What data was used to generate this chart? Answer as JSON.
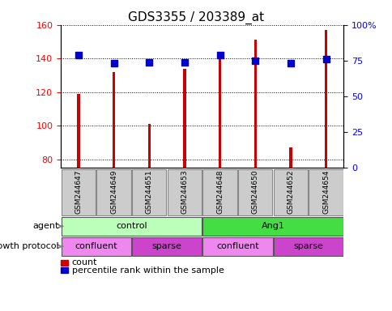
{
  "title": "GDS3355 / 203389_at",
  "samples": [
    "GSM244647",
    "GSM244649",
    "GSM244651",
    "GSM244653",
    "GSM244648",
    "GSM244650",
    "GSM244652",
    "GSM244654"
  ],
  "count_values": [
    119,
    132,
    101,
    134,
    141,
    151,
    87,
    157
  ],
  "percentile_values": [
    79,
    73,
    74,
    74,
    79,
    75,
    73,
    76
  ],
  "ylim_left": [
    75,
    160
  ],
  "ylim_right": [
    0,
    100
  ],
  "yticks_left": [
    80,
    100,
    120,
    140,
    160
  ],
  "yticks_right": [
    0,
    25,
    50,
    75,
    100
  ],
  "ytick_labels_right": [
    "0",
    "25",
    "50",
    "75",
    "100%"
  ],
  "bar_color": "#cc0000",
  "dot_color": "#0000cc",
  "agent_groups": [
    {
      "label": "control",
      "start": 0,
      "end": 4,
      "color": "#bbffbb"
    },
    {
      "label": "Ang1",
      "start": 4,
      "end": 8,
      "color": "#44dd44"
    }
  ],
  "protocol_groups": [
    {
      "label": "confluent",
      "start": 0,
      "end": 2,
      "color": "#ee88ee"
    },
    {
      "label": "sparse",
      "start": 2,
      "end": 4,
      "color": "#cc44cc"
    },
    {
      "label": "confluent",
      "start": 4,
      "end": 6,
      "color": "#ee88ee"
    },
    {
      "label": "sparse",
      "start": 6,
      "end": 8,
      "color": "#cc44cc"
    }
  ],
  "bar_width": 0.08,
  "dot_size": 40,
  "sample_box_color": "#cccccc",
  "sample_box_edge": "#888888",
  "title_fontsize": 11,
  "tick_fontsize": 8,
  "label_fontsize": 8,
  "sample_fontsize": 6.5
}
